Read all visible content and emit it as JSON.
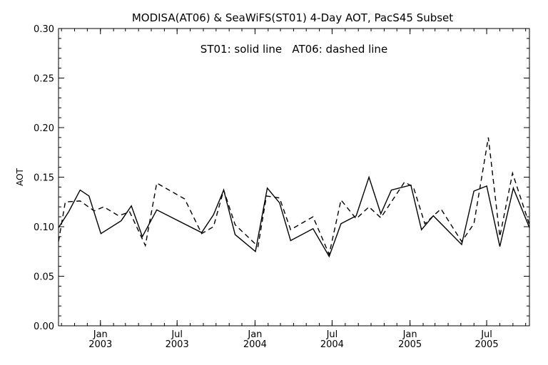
{
  "chart_data": {
    "type": "line",
    "title": "MODISA(AT06) & SeaWiFS(ST01) 4-Day AOT, PacS45 Subset",
    "annotation": "ST01: solid line   AT06: dashed line",
    "ylabel": "AOT",
    "xlabel": "",
    "ylim": [
      0.0,
      0.3
    ],
    "xlim": [
      "2002-09-24",
      "2005-10-10"
    ],
    "grid": false,
    "yticks": [
      "0.00",
      "0.05",
      "0.10",
      "0.15",
      "0.20",
      "0.25",
      "0.30"
    ],
    "xticks": [
      {
        "date": "2003-01-01",
        "month": "Jan",
        "year": "2003"
      },
      {
        "date": "2003-07-01",
        "month": "Jul",
        "year": "2003"
      },
      {
        "date": "2004-01-01",
        "month": "Jan",
        "year": "2004"
      },
      {
        "date": "2004-07-01",
        "month": "Jul",
        "year": "2004"
      },
      {
        "date": "2005-01-01",
        "month": "Jan",
        "year": "2005"
      },
      {
        "date": "2005-07-01",
        "month": "Jul",
        "year": "2005"
      }
    ],
    "series": [
      {
        "name": "ST01",
        "style": "solid",
        "color": "#000000",
        "points": [
          [
            "2002-09-24",
            0.099
          ],
          [
            "2002-10-18",
            0.115
          ],
          [
            "2002-11-14",
            0.137
          ],
          [
            "2002-12-05",
            0.131
          ],
          [
            "2003-01-02",
            0.093
          ],
          [
            "2003-02-19",
            0.106
          ],
          [
            "2003-03-15",
            0.121
          ],
          [
            "2003-04-10",
            0.09
          ],
          [
            "2003-05-14",
            0.117
          ],
          [
            "2003-08-28",
            0.094
          ],
          [
            "2003-09-25",
            0.112
          ],
          [
            "2003-10-19",
            0.137
          ],
          [
            "2003-11-15",
            0.092
          ],
          [
            "2004-01-02",
            0.075
          ],
          [
            "2004-01-30",
            0.139
          ],
          [
            "2004-02-28",
            0.124
          ],
          [
            "2004-03-25",
            0.086
          ],
          [
            "2004-05-17",
            0.098
          ],
          [
            "2004-06-24",
            0.07
          ],
          [
            "2004-07-22",
            0.103
          ],
          [
            "2004-08-27",
            0.111
          ],
          [
            "2004-09-26",
            0.15
          ],
          [
            "2004-10-24",
            0.113
          ],
          [
            "2004-11-18",
            0.137
          ],
          [
            "2005-01-03",
            0.142
          ],
          [
            "2005-01-28",
            0.097
          ],
          [
            "2005-02-25",
            0.111
          ],
          [
            "2005-05-03",
            0.082
          ],
          [
            "2005-06-01",
            0.136
          ],
          [
            "2005-07-01",
            0.141
          ],
          [
            "2005-08-01",
            0.08
          ],
          [
            "2005-09-02",
            0.139
          ],
          [
            "2005-10-10",
            0.099
          ]
        ]
      },
      {
        "name": "AT06",
        "style": "dashed",
        "color": "#000000",
        "points": [
          [
            "2002-09-24",
            0.085
          ],
          [
            "2002-10-10",
            0.125
          ],
          [
            "2002-11-14",
            0.126
          ],
          [
            "2002-12-17",
            0.116
          ],
          [
            "2003-01-09",
            0.12
          ],
          [
            "2003-02-13",
            0.111
          ],
          [
            "2003-03-11",
            0.115
          ],
          [
            "2003-04-17",
            0.081
          ],
          [
            "2003-05-14",
            0.144
          ],
          [
            "2003-07-19",
            0.128
          ],
          [
            "2003-08-28",
            0.093
          ],
          [
            "2003-09-25",
            0.1
          ],
          [
            "2003-10-19",
            0.137
          ],
          [
            "2003-11-15",
            0.102
          ],
          [
            "2004-01-08",
            0.08
          ],
          [
            "2004-01-28",
            0.131
          ],
          [
            "2004-02-28",
            0.129
          ],
          [
            "2004-03-25",
            0.097
          ],
          [
            "2004-05-17",
            0.11
          ],
          [
            "2004-06-24",
            0.072
          ],
          [
            "2004-07-22",
            0.127
          ],
          [
            "2004-08-27",
            0.108
          ],
          [
            "2004-09-26",
            0.12
          ],
          [
            "2004-10-24",
            0.109
          ],
          [
            "2004-12-19",
            0.145
          ],
          [
            "2005-01-09",
            0.14
          ],
          [
            "2005-02-05",
            0.103
          ],
          [
            "2005-03-15",
            0.118
          ],
          [
            "2005-05-03",
            0.085
          ],
          [
            "2005-06-01",
            0.103
          ],
          [
            "2005-07-05",
            0.19
          ],
          [
            "2005-08-01",
            0.09
          ],
          [
            "2005-08-31",
            0.154
          ],
          [
            "2005-10-10",
            0.102
          ]
        ]
      }
    ]
  }
}
